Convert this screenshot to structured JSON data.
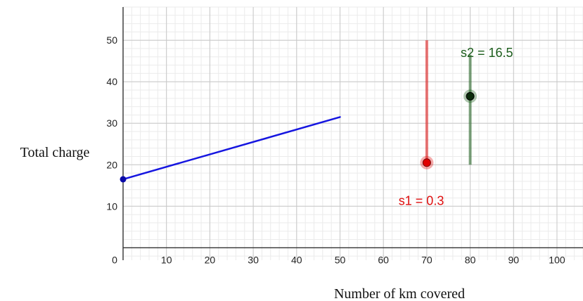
{
  "chart_data": {
    "type": "line",
    "xlabel": "Number of km covered",
    "ylabel": "Total charge",
    "xlim": [
      0,
      106
    ],
    "ylim": [
      -3,
      58
    ],
    "x_ticks": [
      0,
      10,
      20,
      30,
      40,
      50,
      60,
      70,
      80,
      90,
      100
    ],
    "y_ticks": [
      10,
      20,
      30,
      40,
      50
    ],
    "minor_grid_step": 2,
    "grid": true,
    "series": [
      {
        "kind": "line",
        "color": "#1515e0",
        "start": {
          "x": 0,
          "y": 16.5
        },
        "end": {
          "x": 50,
          "y": 31.5
        }
      }
    ],
    "sliders": [
      {
        "name": "s1",
        "label": "s1 = 0.3",
        "value": 0.3,
        "color": "#e01010",
        "track_x": 70,
        "track_y": [
          20.5,
          50
        ],
        "handle": {
          "x": 70,
          "y": 20.5
        },
        "label_anchor": {
          "x": 63.5,
          "y": 11.3
        }
      },
      {
        "name": "s2",
        "label": "s2 = 16.5",
        "value": 16.5,
        "color": "#1a5c1a",
        "track_x": 80,
        "track_y": [
          20,
          46.5
        ],
        "handle": {
          "x": 80,
          "y": 36.5
        },
        "label_anchor": {
          "x": 77.8,
          "y": 47
        }
      }
    ]
  }
}
